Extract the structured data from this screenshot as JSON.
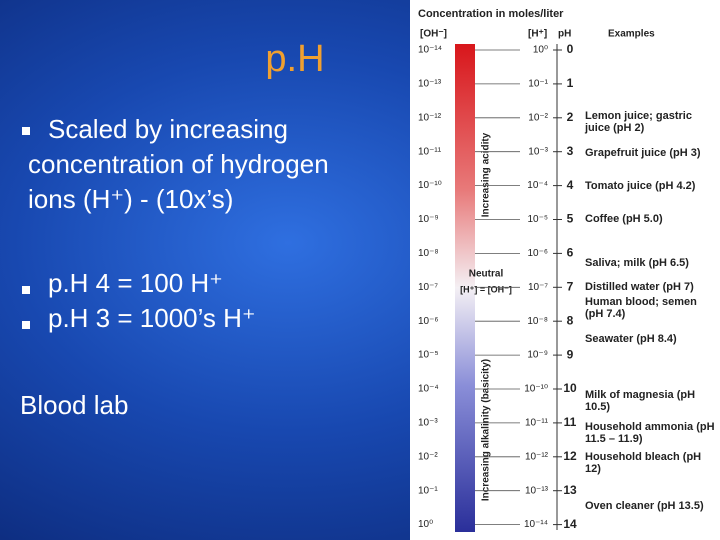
{
  "slide": {
    "title": "p.H",
    "bullets": [
      "Scaled by increasing concentration of hydrogen ions (H⁺) - (10x’s)",
      "p.H 4 = 100 H⁺",
      "p.H 3 = 1000’s H⁺"
    ],
    "footer_text": "Blood lab"
  },
  "figure": {
    "title": "Concentration in moles/liter",
    "headers": [
      "[OH⁻]",
      "[H⁺]",
      "pH",
      "Examples"
    ],
    "rows": [
      {
        "oh": "10⁻¹⁴",
        "h": "10⁰",
        "ph": "0"
      },
      {
        "oh": "10⁻¹³",
        "h": "10⁻¹",
        "ph": "1"
      },
      {
        "oh": "10⁻¹²",
        "h": "10⁻²",
        "ph": "2"
      },
      {
        "oh": "10⁻¹¹",
        "h": "10⁻³",
        "ph": "3"
      },
      {
        "oh": "10⁻¹⁰",
        "h": "10⁻⁴",
        "ph": "4"
      },
      {
        "oh": "10⁻⁹",
        "h": "10⁻⁵",
        "ph": "5"
      },
      {
        "oh": "10⁻⁸",
        "h": "10⁻⁶",
        "ph": "6"
      },
      {
        "oh": "10⁻⁷",
        "h": "10⁻⁷",
        "ph": "7"
      },
      {
        "oh": "10⁻⁶",
        "h": "10⁻⁸",
        "ph": "8"
      },
      {
        "oh": "10⁻⁵",
        "h": "10⁻⁹",
        "ph": "9"
      },
      {
        "oh": "10⁻⁴",
        "h": "10⁻¹⁰",
        "ph": "10"
      },
      {
        "oh": "10⁻³",
        "h": "10⁻¹¹",
        "ph": "11"
      },
      {
        "oh": "10⁻²",
        "h": "10⁻¹²",
        "ph": "12"
      },
      {
        "oh": "10⁻¹",
        "h": "10⁻¹³",
        "ph": "13"
      },
      {
        "oh": "10⁰",
        "h": "10⁻¹⁴",
        "ph": "14"
      }
    ],
    "examples": [
      "Lemon juice; gastric juice (pH 2)",
      "Grapefruit juice (pH 3)",
      "Tomato juice (pH 4.2)",
      "Coffee (pH 5.0)",
      "Saliva; milk (pH 6.5)",
      "Distilled water (pH 7)",
      "Human blood; semen (pH 7.4)",
      "Seawater (pH 8.4)",
      "Milk of magnesia (pH 10.5)",
      "Household ammonia (pH 11.5 – 11.9)",
      "Household bleach (pH 12)",
      "Oven cleaner (pH 13.5)"
    ],
    "labels": {
      "acidity": "Increasing acidity",
      "alkalinity": "Increasing alkalinity (basicity)",
      "neutral": "Neutral",
      "neutral_eq": "[H⁺] = [OH⁻]"
    }
  }
}
